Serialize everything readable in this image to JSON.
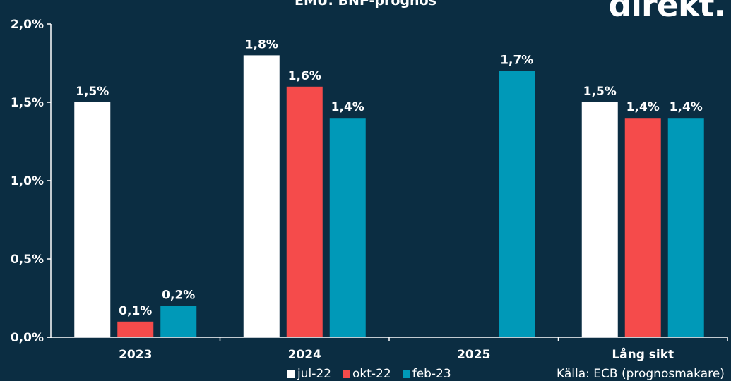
{
  "logo": "direkt.",
  "chart_data": {
    "type": "bar",
    "title": "EMU: BNP-prognos",
    "categories": [
      "2023",
      "2024",
      "2025",
      "Lång sikt"
    ],
    "series": [
      {
        "name": "jul-22",
        "color": "#ffffff",
        "values": [
          1.5,
          1.8,
          null,
          1.5
        ]
      },
      {
        "name": "okt-22",
        "color": "#f54b4b",
        "values": [
          0.1,
          1.6,
          null,
          1.4
        ]
      },
      {
        "name": "feb-23",
        "color": "#0099b8",
        "values": [
          0.2,
          1.4,
          1.7,
          1.4
        ]
      }
    ],
    "ylim": [
      0,
      2.0
    ],
    "yticks": [
      "0,0%",
      "0,5%",
      "1,0%",
      "1,5%",
      "2,0%"
    ],
    "grid": false,
    "legend": "bottom",
    "source": "Källa: ECB (prognosmakare)"
  }
}
